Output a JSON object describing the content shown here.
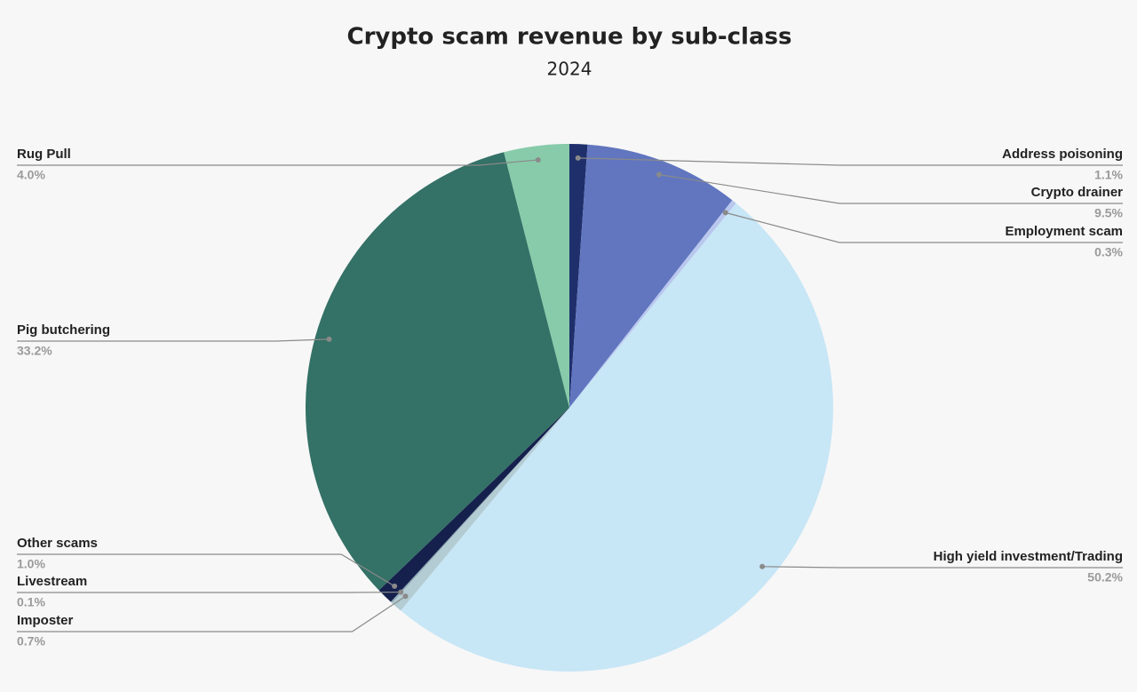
{
  "chart_data": {
    "type": "pie",
    "title": "Crypto scam revenue by sub-class",
    "subtitle": "2024",
    "categories": [
      "Address poisoning",
      "Crypto drainer",
      "Employment scam",
      "High yield investment/Trading",
      "Imposter",
      "Livestream",
      "Other scams",
      "Pig butchering",
      "Rug Pull"
    ],
    "values": [
      1.1,
      9.5,
      0.3,
      50.2,
      0.7,
      0.1,
      1.0,
      33.2,
      4.0
    ],
    "value_labels": [
      "1.1%",
      "9.5%",
      "0.3%",
      "50.2%",
      "0.7%",
      "0.1%",
      "1.0%",
      "33.2%",
      "4.0%"
    ],
    "colors": [
      "#1f2f6b",
      "#6176bf",
      "#b9c7ee",
      "#c7e6f6",
      "#b3ccd4",
      "#8faab5",
      "#15204d",
      "#347166",
      "#87cbaa"
    ]
  }
}
